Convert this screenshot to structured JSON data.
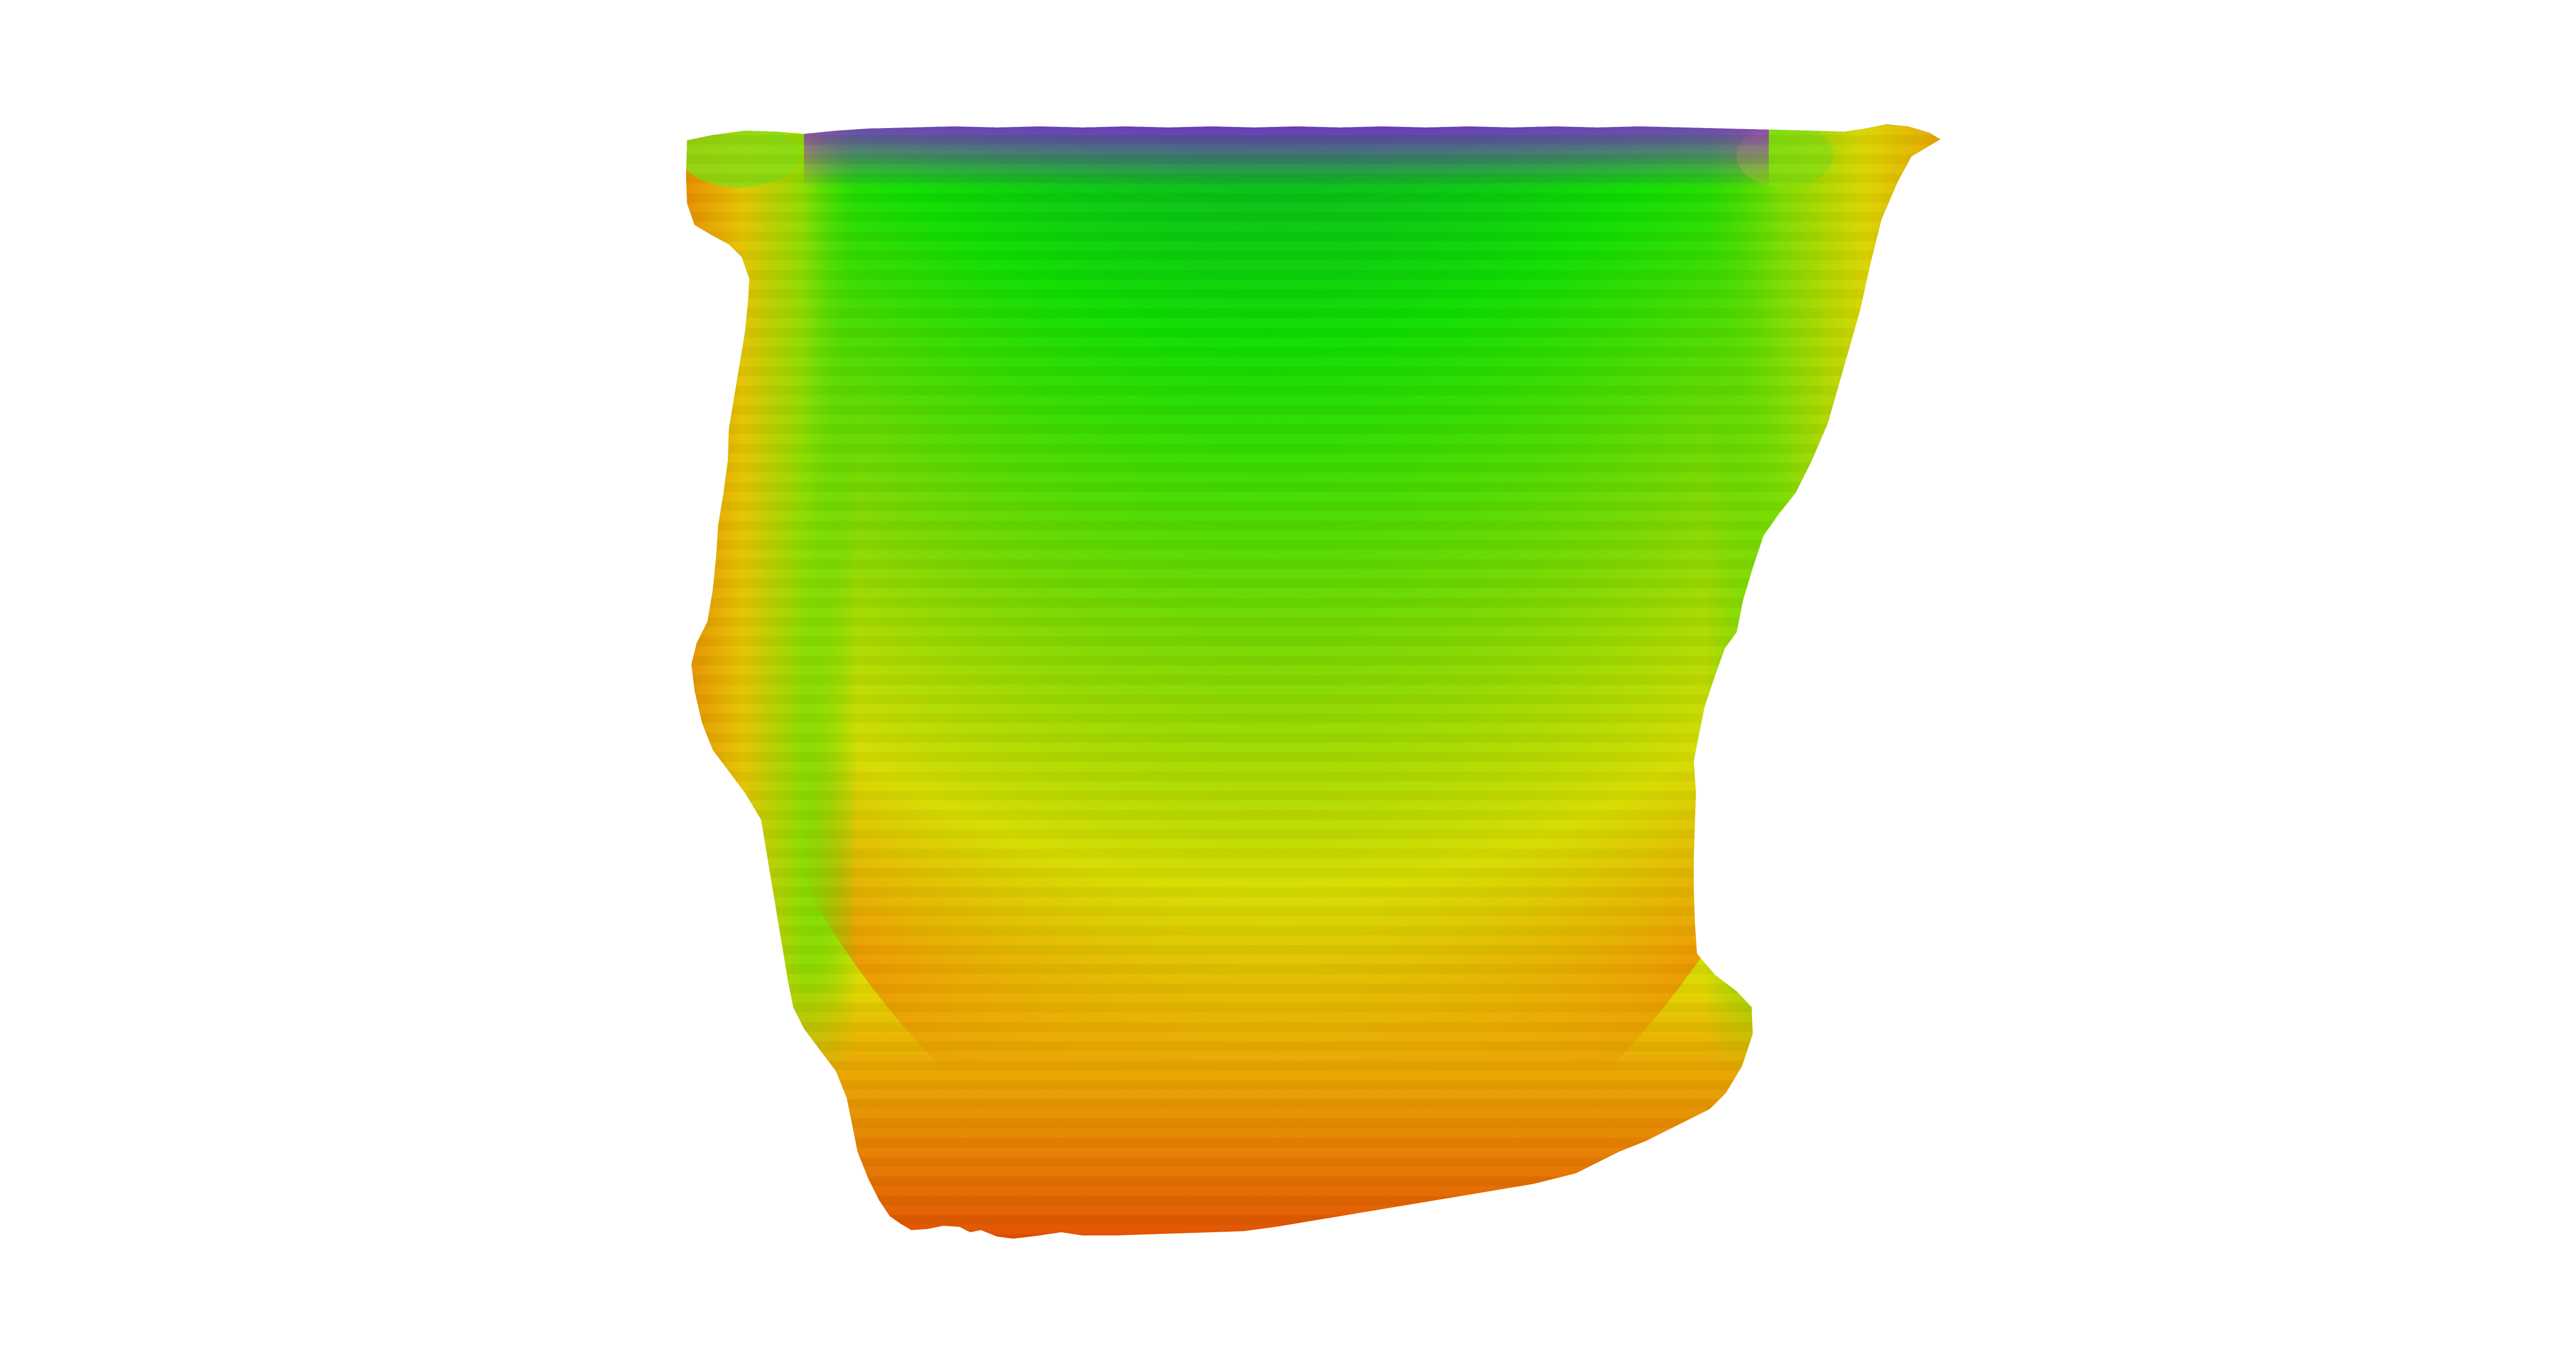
{
  "scene": {
    "background_color": "#ffffff",
    "object": "elevation-colored-surface",
    "colormap": [
      "#9900ff",
      "#0000cc",
      "#0000ee",
      "#006655",
      "#00aa33",
      "#00dd00",
      "#44dd00",
      "#99dd00",
      "#dddd00",
      "#ee9900",
      "#e86000",
      "#e03000"
    ],
    "colormap_names": [
      "violet",
      "blue",
      "teal",
      "green",
      "yellow-green",
      "yellow",
      "orange",
      "red"
    ]
  }
}
